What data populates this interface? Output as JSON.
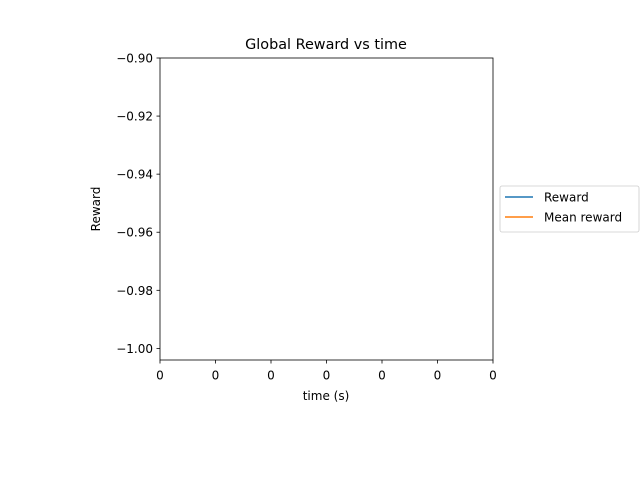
{
  "chart_data": {
    "type": "line",
    "title": "Global Reward vs time",
    "xlabel": "time (s)",
    "ylabel": "Reward",
    "x_ticks": [
      "0",
      "0",
      "0",
      "0",
      "0",
      "0",
      "0"
    ],
    "y_ticks": [
      -0.9,
      -0.92,
      -0.94,
      -0.96,
      -0.98,
      -1.0
    ],
    "y_tick_labels": [
      "−0.90",
      "−0.92",
      "−0.94",
      "−0.96",
      "−0.98",
      "−1.00"
    ],
    "ylim": [
      -1.004,
      -0.9
    ],
    "grid": false,
    "legend_position": "outside-right",
    "series": [
      {
        "name": "Reward",
        "color": "#1f77b4",
        "x": [],
        "y": []
      },
      {
        "name": "Mean reward",
        "color": "#ff7f0e",
        "x": [],
        "y": []
      }
    ]
  }
}
